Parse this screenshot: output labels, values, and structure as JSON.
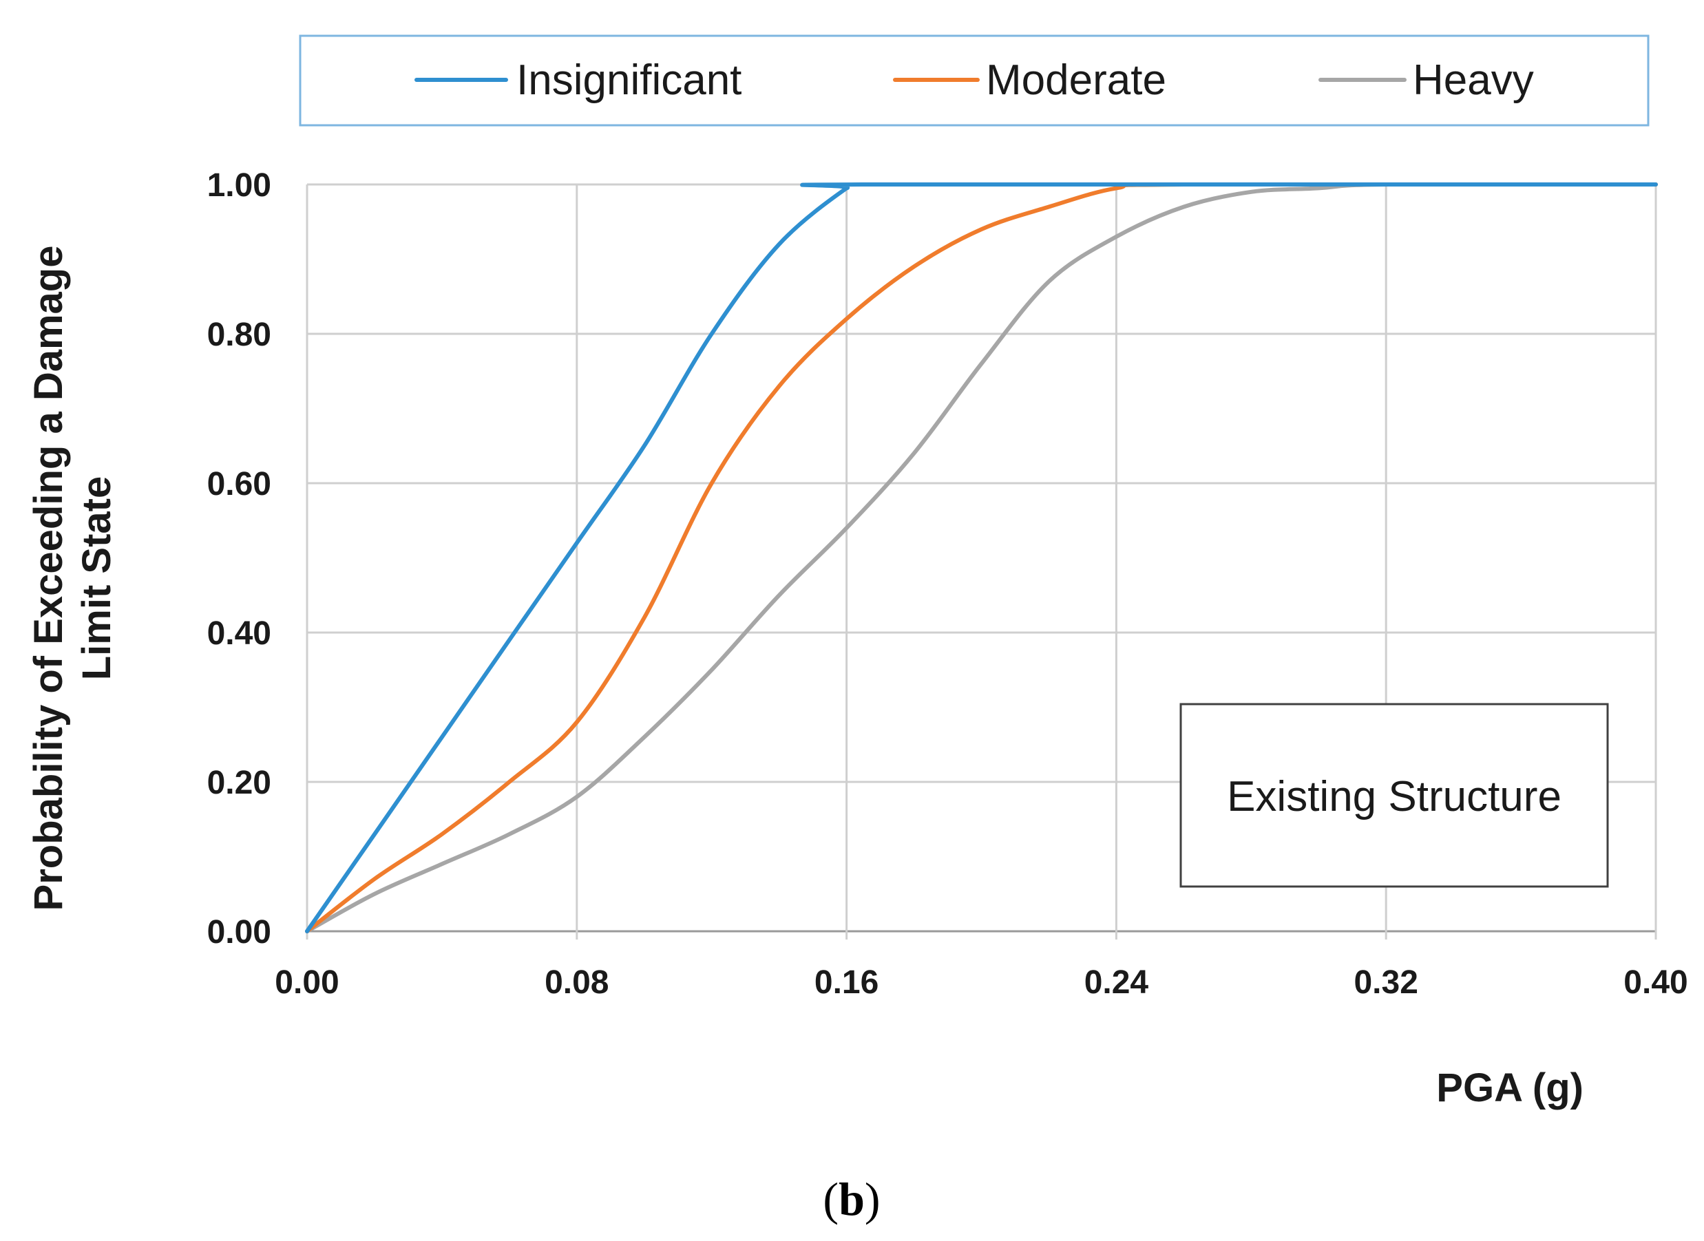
{
  "chart_data": {
    "type": "line",
    "xlabel": "PGA (g)",
    "ylabel_lines": [
      "Probability of Exceeding a Damage",
      "Limit State"
    ],
    "xlim": [
      0,
      0.4
    ],
    "ylim": [
      0,
      1
    ],
    "xticks": [
      "0.00",
      "0.08",
      "0.16",
      "0.24",
      "0.32",
      "0.40"
    ],
    "yticks": [
      "0.00",
      "0.20",
      "0.40",
      "0.60",
      "0.80",
      "1.00"
    ],
    "grid": true,
    "legend_position": "top",
    "annotation": "Existing Structure",
    "caption": {
      "open": "(",
      "letter": "b",
      "close": ")"
    },
    "series": [
      {
        "name": "Insignificant",
        "color": "#2E8FD0",
        "x": [
          0,
          0.02,
          0.04,
          0.06,
          0.08,
          0.1,
          0.12,
          0.14,
          0.16,
          0.165,
          0.4
        ],
        "y": [
          0,
          0.13,
          0.26,
          0.39,
          0.52,
          0.65,
          0.8,
          0.92,
          0.995,
          1.0,
          1.0
        ]
      },
      {
        "name": "Moderate",
        "color": "#F07C2C",
        "x": [
          0,
          0.02,
          0.04,
          0.06,
          0.08,
          0.1,
          0.12,
          0.14,
          0.16,
          0.18,
          0.2,
          0.22,
          0.24,
          0.26,
          0.4
        ],
        "y": [
          0,
          0.07,
          0.13,
          0.2,
          0.28,
          0.42,
          0.6,
          0.73,
          0.82,
          0.89,
          0.94,
          0.97,
          0.995,
          1.0,
          1.0
        ]
      },
      {
        "name": "Heavy",
        "color": "#A6A6A6",
        "x": [
          0,
          0.02,
          0.04,
          0.06,
          0.08,
          0.1,
          0.12,
          0.14,
          0.16,
          0.18,
          0.2,
          0.22,
          0.24,
          0.26,
          0.28,
          0.3,
          0.32,
          0.4
        ],
        "y": [
          0,
          0.05,
          0.09,
          0.13,
          0.18,
          0.26,
          0.35,
          0.45,
          0.54,
          0.64,
          0.76,
          0.87,
          0.93,
          0.97,
          0.99,
          0.995,
          1.0,
          1.0
        ]
      }
    ]
  }
}
